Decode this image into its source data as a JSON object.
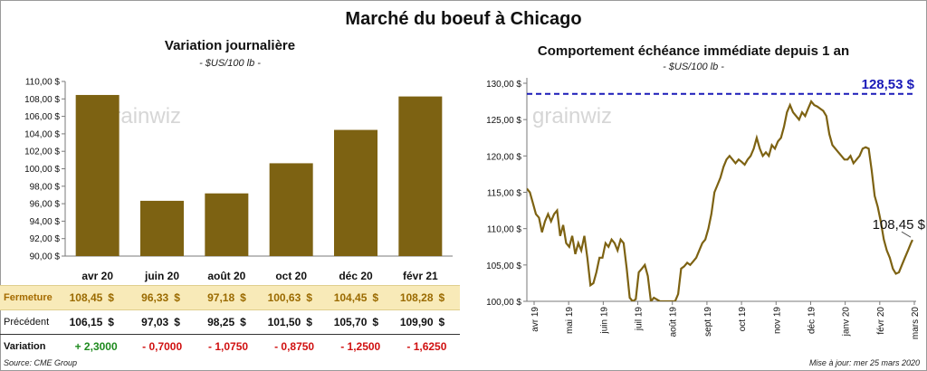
{
  "title": "Marché du boeuf à Chicago",
  "source": "Source: CME Group",
  "updated": "Mise à jour: mer 25 mars 2020",
  "watermark": "grainwiz",
  "colors": {
    "bar": "#7d6212",
    "line": "#7d6212",
    "max_line": "#1a1ab8",
    "fermeture_bg": "#f8eab8",
    "positive": "#1e8a1e",
    "negative": "#d01010"
  },
  "chart_data": [
    {
      "type": "bar",
      "title": "Variation journalière",
      "unit": "- $US/100 lb -",
      "categories": [
        "avr 20",
        "juin 20",
        "août 20",
        "oct 20",
        "déc 20",
        "févr 21"
      ],
      "values": [
        108.45,
        96.33,
        97.18,
        100.63,
        104.45,
        108.28
      ],
      "ylim": [
        90,
        110
      ],
      "yticks": [
        "90,00 $",
        "92,00 $",
        "94,00 $",
        "96,00 $",
        "98,00 $",
        "100,00 $",
        "102,00 $",
        "104,00 $",
        "106,00 $",
        "108,00 $",
        "110,00 $"
      ],
      "grid": false,
      "table": {
        "fermeture": {
          "label": "Fermeture",
          "values": [
            "108,45",
            "96,33",
            "97,18",
            "100,63",
            "104,45",
            "108,28"
          ],
          "currency": "$"
        },
        "precedent": {
          "label": "Précédent",
          "values": [
            "106,15",
            "97,03",
            "98,25",
            "101,50",
            "105,70",
            "109,90"
          ],
          "currency": "$"
        },
        "variation": {
          "label": "Variation",
          "values": [
            "+ 2,3000",
            "- 0,7000",
            "- 1,0750",
            "- 0,8750",
            "- 1,2500",
            "- 1,6250"
          ]
        }
      }
    },
    {
      "type": "line",
      "title": "Comportement échéance immédiate depuis 1 an",
      "unit": "- $US/100 lb -",
      "ylim": [
        100,
        130
      ],
      "yticks": [
        "100,00 $",
        "105,00 $",
        "110,00 $",
        "115,00 $",
        "120,00 $",
        "125,00 $",
        "130,00 $"
      ],
      "xticks": [
        "avr 19",
        "mai 19",
        "juin 19",
        "juil 19",
        "août 19",
        "sept 19",
        "oct 19",
        "nov 19",
        "déc 19",
        "janv 20",
        "févr 20",
        "mars 20"
      ],
      "max_value": 128.53,
      "max_label": "128,53 $",
      "last_value": 108.45,
      "last_label": "108,45 $",
      "series": [
        {
          "values": [
            [
              0,
              115.5
            ],
            [
              2,
              115
            ],
            [
              4,
              113.5
            ],
            [
              6,
              112
            ],
            [
              8,
              111.5
            ],
            [
              10,
              109.5
            ],
            [
              12,
              111
            ],
            [
              14,
              112
            ],
            [
              16,
              111
            ],
            [
              18,
              112
            ],
            [
              20,
              112.5
            ],
            [
              22,
              109
            ],
            [
              24,
              110.5
            ],
            [
              26,
              108
            ],
            [
              28,
              107.5
            ],
            [
              30,
              109
            ],
            [
              32,
              106.5
            ],
            [
              34,
              108
            ],
            [
              36,
              107
            ],
            [
              38,
              109
            ],
            [
              40,
              106
            ],
            [
              42,
              102.2
            ],
            [
              44,
              102.5
            ],
            [
              46,
              104
            ],
            [
              48,
              106
            ],
            [
              50,
              106
            ],
            [
              52,
              108
            ],
            [
              54,
              107.5
            ],
            [
              56,
              108.5
            ],
            [
              58,
              108
            ],
            [
              60,
              107
            ],
            [
              62,
              108.5
            ],
            [
              64,
              108
            ],
            [
              66,
              104.5
            ],
            [
              68,
              100.5
            ],
            [
              70,
              100
            ],
            [
              72,
              100.3
            ],
            [
              74,
              104
            ],
            [
              76,
              104.5
            ],
            [
              78,
              105
            ],
            [
              80,
              103.5
            ],
            [
              82,
              100
            ],
            [
              84,
              100.5
            ],
            [
              88,
              100
            ],
            [
              92,
              100
            ],
            [
              96,
              100
            ],
            [
              98,
              100
            ],
            [
              100,
              101
            ],
            [
              102,
              104.5
            ],
            [
              104,
              104.8
            ],
            [
              106,
              105.3
            ],
            [
              108,
              105
            ],
            [
              110,
              105.5
            ],
            [
              112,
              106
            ],
            [
              114,
              107
            ],
            [
              116,
              108
            ],
            [
              118,
              108.5
            ],
            [
              120,
              110
            ],
            [
              122,
              112
            ],
            [
              124,
              115
            ],
            [
              126,
              116
            ],
            [
              128,
              117
            ],
            [
              130,
              118.5
            ],
            [
              132,
              119.5
            ],
            [
              134,
              120
            ],
            [
              136,
              119.5
            ],
            [
              138,
              119
            ],
            [
              140,
              119.5
            ],
            [
              142,
              119.2
            ],
            [
              144,
              118.8
            ],
            [
              146,
              119.5
            ],
            [
              148,
              120
            ],
            [
              150,
              121
            ],
            [
              152,
              122.5
            ],
            [
              154,
              121
            ],
            [
              156,
              120
            ],
            [
              158,
              120.5
            ],
            [
              160,
              120
            ],
            [
              162,
              121.5
            ],
            [
              164,
              121
            ],
            [
              166,
              122
            ],
            [
              168,
              122.5
            ],
            [
              170,
              124
            ],
            [
              172,
              126
            ],
            [
              174,
              127
            ],
            [
              176,
              126
            ],
            [
              178,
              125.5
            ],
            [
              180,
              125
            ],
            [
              182,
              126
            ],
            [
              184,
              125.5
            ],
            [
              186,
              126.5
            ],
            [
              188,
              127.5
            ],
            [
              190,
              127
            ],
            [
              192,
              126.8
            ],
            [
              194,
              126.5
            ],
            [
              196,
              126.2
            ],
            [
              198,
              125.5
            ],
            [
              200,
              123
            ],
            [
              202,
              121.5
            ],
            [
              204,
              121
            ],
            [
              206,
              120.5
            ],
            [
              208,
              120
            ],
            [
              210,
              119.5
            ],
            [
              212,
              119.5
            ],
            [
              214,
              120
            ],
            [
              216,
              119
            ],
            [
              218,
              119.5
            ],
            [
              220,
              120
            ],
            [
              222,
              121
            ],
            [
              224,
              121.2
            ],
            [
              226,
              121
            ],
            [
              228,
              118
            ],
            [
              230,
              114.5
            ],
            [
              232,
              113
            ],
            [
              234,
              111
            ],
            [
              236,
              108.5
            ],
            [
              238,
              107
            ],
            [
              240,
              106
            ],
            [
              242,
              104.5
            ],
            [
              244,
              103.8
            ],
            [
              246,
              104
            ],
            [
              248,
              105
            ],
            [
              250,
              106
            ],
            [
              252,
              107
            ],
            [
              254,
              108
            ],
            [
              255,
              108.45
            ]
          ]
        }
      ]
    }
  ]
}
